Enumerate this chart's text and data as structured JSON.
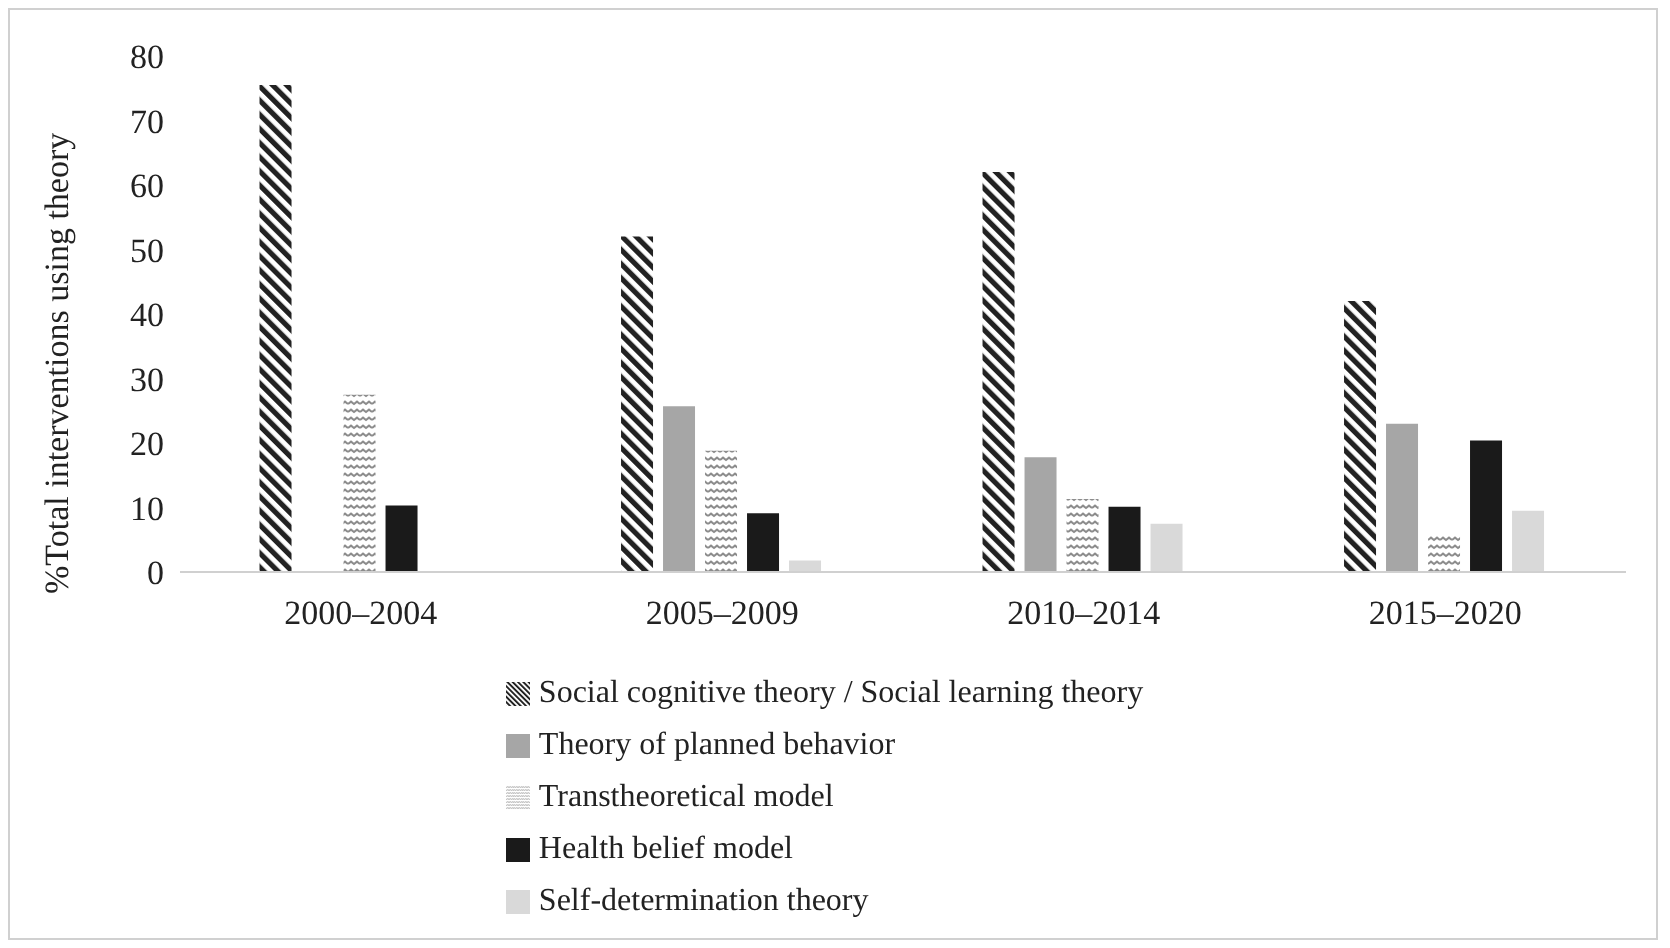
{
  "chart_data": {
    "type": "bar",
    "ylabel": "%Total interventions using theory",
    "categories": [
      "2000–2004",
      "2005–2009",
      "2010–2014",
      "2015–2020"
    ],
    "series": [
      {
        "name": "Social cognitive theory / Social learning theory",
        "color": "#222222",
        "values": [
          75.5,
          52,
          62,
          42
        ]
      },
      {
        "name": "Theory of planned behavior",
        "color": "#a6a6a6",
        "values": [
          0,
          25.7,
          17.8,
          23
        ]
      },
      {
        "name": "Transtheoretical model",
        "color": "#8c8c8c",
        "values": [
          27.5,
          18.8,
          11.3,
          5.7
        ]
      },
      {
        "name": "Health belief model",
        "color": "#1a1a1a",
        "values": [
          10.3,
          9.1,
          10.1,
          20.4
        ]
      },
      {
        "name": "Self-determination theory",
        "color": "#d9d9d9",
        "values": [
          null,
          1.8,
          7.5,
          9.5
        ]
      }
    ],
    "ylim": [
      0,
      80
    ],
    "yticks": [
      0,
      10,
      20,
      30,
      40,
      50,
      60,
      70,
      80
    ],
    "grid": false,
    "legend": "bottom"
  }
}
